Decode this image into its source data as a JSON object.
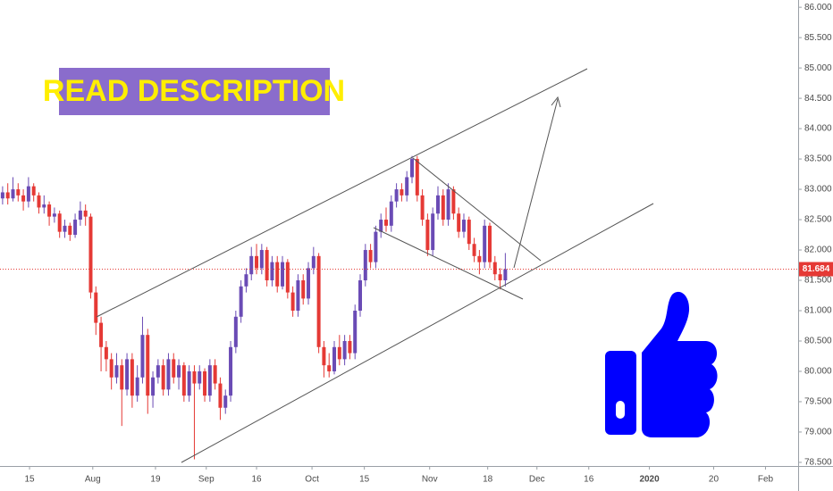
{
  "chart_data": {
    "type": "candlestick",
    "annotation": "READ DESCRIPTION",
    "up_color": "#6a4bb5",
    "down_color": "#e53935",
    "last_price_color": "#e53935",
    "xlim": [
      -0.5,
      153.5
    ],
    "xticks": [
      {
        "value": 5.2,
        "label": "15"
      },
      {
        "value": 17.4,
        "label": "Aug"
      },
      {
        "value": 29.5,
        "label": "19"
      },
      {
        "value": 39.3,
        "label": "Sep"
      },
      {
        "value": 49,
        "label": "16"
      },
      {
        "value": 59.7,
        "label": "Oct"
      },
      {
        "value": 69.8,
        "label": "15"
      },
      {
        "value": 82.4,
        "label": "Nov"
      },
      {
        "value": 93.6,
        "label": "18"
      },
      {
        "value": 103.1,
        "label": "Dec"
      },
      {
        "value": 113.1,
        "label": "16"
      },
      {
        "value": 124.8,
        "label": "2020"
      },
      {
        "value": 137.2,
        "label": "20"
      },
      {
        "value": 147.2,
        "label": "Feb"
      }
    ],
    "ylim": [
      78.44,
      86.12
    ],
    "yticks": [
      {
        "value": 78.5,
        "label": "78.500"
      },
      {
        "value": 79,
        "label": "79.000"
      },
      {
        "value": 79.5,
        "label": "79.500"
      },
      {
        "value": 80,
        "label": "80.000"
      },
      {
        "value": 80.5,
        "label": "80.500"
      },
      {
        "value": 81,
        "label": "81.000"
      },
      {
        "value": 81.5,
        "label": "81.500"
      },
      {
        "value": 82,
        "label": "82.000"
      },
      {
        "value": 82.5,
        "label": "82.500"
      },
      {
        "value": 83,
        "label": "83.000"
      },
      {
        "value": 83.5,
        "label": "83.500"
      },
      {
        "value": 84,
        "label": "84.000"
      },
      {
        "value": 84.5,
        "label": "84.500"
      },
      {
        "value": 85,
        "label": "85.000"
      },
      {
        "value": 85.5,
        "label": "85.500"
      },
      {
        "value": 86,
        "label": "86.000"
      }
    ],
    "ohlc": [
      [
        82.85,
        83.05,
        82.75,
        82.95
      ],
      [
        82.95,
        83.1,
        82.75,
        82.85
      ],
      [
        82.85,
        83.2,
        82.8,
        83.0
      ],
      [
        83.0,
        83.1,
        82.8,
        82.9
      ],
      [
        82.9,
        83.0,
        82.65,
        82.8
      ],
      [
        82.8,
        83.2,
        82.7,
        83.05
      ],
      [
        83.05,
        83.1,
        82.8,
        82.9
      ],
      [
        82.9,
        82.95,
        82.6,
        82.7
      ],
      [
        82.7,
        82.9,
        82.6,
        82.75
      ],
      [
        82.75,
        82.8,
        82.4,
        82.55
      ],
      [
        82.55,
        82.7,
        82.45,
        82.6
      ],
      [
        82.6,
        82.65,
        82.2,
        82.3
      ],
      [
        82.3,
        82.5,
        82.2,
        82.4
      ],
      [
        82.4,
        82.45,
        82.15,
        82.25
      ],
      [
        82.25,
        82.6,
        82.2,
        82.5
      ],
      [
        82.5,
        82.8,
        82.4,
        82.65
      ],
      [
        82.65,
        82.75,
        82.4,
        82.55
      ],
      [
        82.55,
        82.6,
        81.2,
        81.3
      ],
      [
        81.3,
        81.4,
        80.6,
        80.8
      ],
      [
        80.8,
        80.9,
        80.0,
        80.4
      ],
      [
        80.4,
        80.5,
        80.0,
        80.2
      ],
      [
        80.2,
        80.3,
        79.7,
        79.9
      ],
      [
        79.9,
        80.3,
        79.8,
        80.1
      ],
      [
        80.1,
        80.2,
        79.1,
        79.7
      ],
      [
        79.7,
        80.3,
        79.6,
        80.2
      ],
      [
        80.2,
        80.3,
        79.4,
        79.6
      ],
      [
        79.6,
        80.1,
        79.5,
        79.9
      ],
      [
        79.9,
        80.9,
        79.8,
        80.6
      ],
      [
        80.6,
        80.7,
        79.3,
        79.6
      ],
      [
        79.6,
        80.0,
        79.4,
        79.9
      ],
      [
        79.9,
        80.2,
        79.8,
        80.1
      ],
      [
        80.1,
        80.2,
        79.6,
        79.7
      ],
      [
        79.7,
        80.3,
        79.6,
        80.2
      ],
      [
        80.2,
        80.3,
        79.8,
        79.9
      ],
      [
        79.9,
        80.2,
        79.7,
        80.1
      ],
      [
        80.1,
        80.15,
        79.5,
        79.6
      ],
      [
        79.6,
        80.1,
        79.5,
        80.0
      ],
      [
        80.0,
        80.1,
        78.55,
        79.8
      ],
      [
        79.8,
        80.1,
        79.7,
        80.0
      ],
      [
        80.0,
        80.05,
        79.5,
        79.6
      ],
      [
        79.6,
        80.2,
        79.5,
        80.1
      ],
      [
        80.1,
        80.2,
        79.7,
        79.8
      ],
      [
        79.8,
        79.9,
        79.2,
        79.4
      ],
      [
        79.4,
        79.7,
        79.3,
        79.6
      ],
      [
        79.6,
        80.5,
        79.5,
        80.4
      ],
      [
        80.4,
        81.0,
        80.3,
        80.9
      ],
      [
        80.9,
        81.5,
        80.8,
        81.4
      ],
      [
        81.4,
        81.7,
        81.3,
        81.6
      ],
      [
        81.6,
        82.05,
        81.5,
        81.9
      ],
      [
        81.9,
        82.1,
        81.6,
        81.7
      ],
      [
        81.7,
        82.1,
        81.6,
        82.0
      ],
      [
        82.0,
        82.05,
        81.4,
        81.5
      ],
      [
        81.5,
        81.9,
        81.4,
        81.8
      ],
      [
        81.8,
        81.9,
        81.3,
        81.4
      ],
      [
        81.4,
        81.9,
        81.35,
        81.8
      ],
      [
        81.8,
        81.85,
        81.2,
        81.3
      ],
      [
        81.3,
        81.4,
        80.9,
        81.0
      ],
      [
        81.0,
        81.6,
        80.9,
        81.5
      ],
      [
        81.5,
        81.6,
        81.1,
        81.2
      ],
      [
        81.2,
        81.8,
        81.1,
        81.7
      ],
      [
        81.7,
        82.05,
        81.6,
        81.9
      ],
      [
        81.9,
        81.95,
        80.3,
        80.4
      ],
      [
        80.4,
        80.5,
        79.9,
        80.1
      ],
      [
        80.1,
        80.3,
        79.9,
        80.0
      ],
      [
        80.0,
        80.5,
        79.95,
        80.4
      ],
      [
        80.4,
        80.6,
        80.1,
        80.2
      ],
      [
        80.2,
        80.6,
        80.1,
        80.5
      ],
      [
        80.5,
        80.6,
        80.2,
        80.3
      ],
      [
        80.3,
        81.1,
        80.2,
        81.0
      ],
      [
        81.0,
        81.6,
        80.9,
        81.5
      ],
      [
        81.5,
        82.1,
        81.4,
        82.0
      ],
      [
        82.0,
        82.1,
        81.7,
        81.8
      ],
      [
        81.8,
        82.4,
        81.7,
        82.3
      ],
      [
        82.3,
        82.6,
        82.2,
        82.5
      ],
      [
        82.5,
        82.7,
        82.3,
        82.4
      ],
      [
        82.4,
        82.9,
        82.3,
        82.8
      ],
      [
        82.8,
        83.1,
        82.7,
        83.0
      ],
      [
        83.0,
        83.1,
        82.8,
        82.9
      ],
      [
        82.9,
        83.3,
        82.8,
        83.2
      ],
      [
        83.2,
        83.55,
        83.1,
        83.5
      ],
      [
        83.5,
        83.55,
        82.8,
        82.9
      ],
      [
        82.9,
        83.0,
        82.4,
        82.5
      ],
      [
        82.5,
        82.6,
        81.9,
        82.0
      ],
      [
        82.0,
        82.7,
        81.9,
        82.6
      ],
      [
        82.6,
        83.05,
        82.5,
        82.9
      ],
      [
        82.9,
        83.0,
        82.4,
        82.5
      ],
      [
        82.5,
        83.1,
        82.4,
        83.0
      ],
      [
        83.0,
        83.05,
        82.5,
        82.6
      ],
      [
        82.6,
        82.7,
        82.2,
        82.3
      ],
      [
        82.3,
        82.6,
        82.2,
        82.5
      ],
      [
        82.5,
        82.55,
        82.0,
        82.1
      ],
      [
        82.1,
        82.2,
        81.8,
        81.9
      ],
      [
        81.9,
        82.0,
        81.6,
        81.8
      ],
      [
        81.8,
        82.5,
        81.7,
        82.4
      ],
      [
        82.4,
        82.45,
        81.7,
        81.8
      ],
      [
        81.8,
        81.9,
        81.5,
        81.6
      ],
      [
        81.6,
        81.7,
        81.35,
        81.5
      ],
      [
        81.5,
        81.95,
        81.4,
        81.684
      ]
    ]
  }
}
